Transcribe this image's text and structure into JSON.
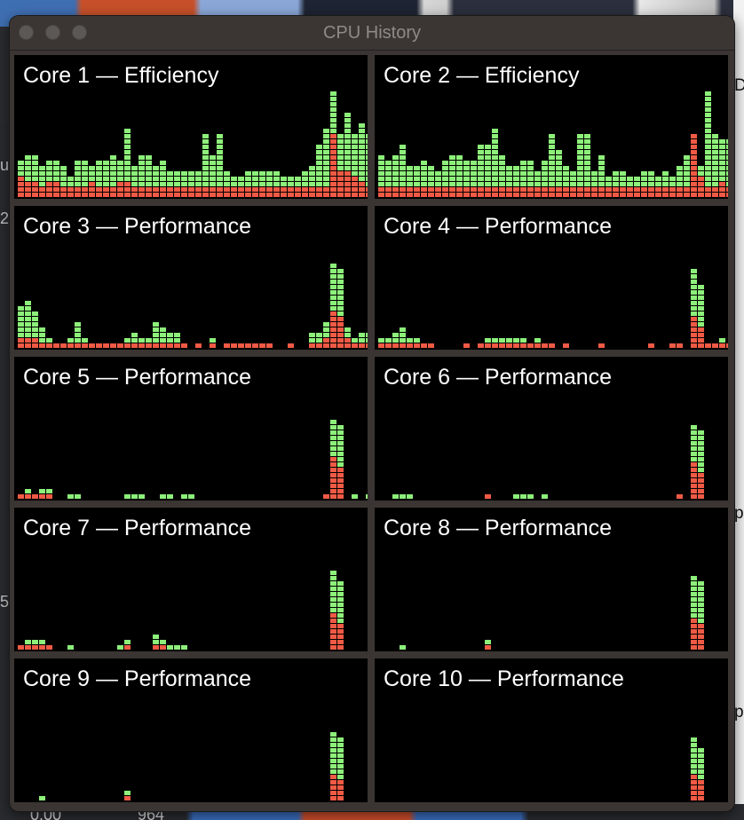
{
  "window": {
    "title": "CPU History"
  },
  "background_fragments": {
    "right_edge": [
      "D",
      "p",
      "p"
    ],
    "left_edge": [
      "u",
      "2",
      "5"
    ],
    "bottom": [
      "0.00",
      "964"
    ]
  },
  "colors": {
    "user": "#8df07a",
    "system": "#f05a45",
    "panel_bg": "#000000",
    "window_bg": "#3a3532"
  },
  "cores": [
    {
      "label": "Core 1 — Efficiency",
      "total": [
        7,
        8,
        8,
        6,
        7,
        7,
        6,
        4,
        7,
        7,
        6,
        7,
        7,
        8,
        7,
        13,
        6,
        8,
        8,
        6,
        7,
        5,
        5,
        5,
        5,
        5,
        12,
        8,
        12,
        5,
        4,
        4,
        5,
        5,
        5,
        5,
        5,
        4,
        4,
        4,
        5,
        6,
        10,
        13,
        20,
        12,
        16,
        12,
        14,
        12
      ],
      "system": [
        4,
        3,
        3,
        2,
        3,
        3,
        2,
        2,
        2,
        2,
        3,
        2,
        2,
        2,
        3,
        3,
        2,
        2,
        2,
        2,
        2,
        2,
        2,
        2,
        2,
        2,
        2,
        2,
        2,
        2,
        2,
        2,
        2,
        2,
        2,
        2,
        2,
        2,
        2,
        2,
        2,
        2,
        2,
        2,
        12,
        5,
        5,
        4,
        3,
        2
      ]
    },
    {
      "label": "Core 2 — Efficiency",
      "total": [
        8,
        7,
        8,
        10,
        6,
        6,
        7,
        6,
        5,
        7,
        8,
        8,
        7,
        7,
        10,
        10,
        13,
        8,
        6,
        6,
        7,
        7,
        5,
        7,
        12,
        9,
        6,
        5,
        12,
        12,
        5,
        8,
        4,
        5,
        5,
        4,
        4,
        5,
        5,
        4,
        5,
        4,
        6,
        8,
        12,
        6,
        20,
        12,
        11,
        11
      ],
      "system": [
        2,
        2,
        2,
        2,
        2,
        2,
        2,
        2,
        2,
        2,
        2,
        2,
        2,
        2,
        2,
        2,
        2,
        2,
        2,
        2,
        2,
        2,
        2,
        2,
        2,
        2,
        2,
        2,
        2,
        2,
        2,
        2,
        2,
        2,
        2,
        2,
        2,
        2,
        2,
        2,
        2,
        2,
        2,
        2,
        14,
        4,
        2,
        2,
        3,
        2
      ]
    },
    {
      "label": "Core 3 — Performance",
      "total": [
        8,
        9,
        7,
        4,
        2,
        1,
        1,
        2,
        5,
        2,
        1,
        1,
        1,
        1,
        1,
        2,
        3,
        2,
        2,
        5,
        4,
        3,
        3,
        1,
        0,
        1,
        0,
        2,
        0,
        1,
        1,
        1,
        1,
        1,
        1,
        1,
        0,
        0,
        1,
        0,
        0,
        3,
        3,
        5,
        16,
        15,
        4,
        2,
        3,
        3
      ],
      "system": [
        2,
        2,
        2,
        1,
        1,
        1,
        1,
        1,
        1,
        1,
        1,
        1,
        1,
        1,
        1,
        1,
        1,
        1,
        1,
        1,
        1,
        1,
        1,
        1,
        0,
        1,
        0,
        1,
        0,
        1,
        1,
        1,
        1,
        1,
        1,
        1,
        0,
        0,
        1,
        0,
        0,
        1,
        1,
        2,
        7,
        6,
        2,
        1,
        1,
        1
      ]
    },
    {
      "label": "Core 4 — Performance",
      "total": [
        2,
        2,
        3,
        4,
        2,
        2,
        1,
        1,
        0,
        0,
        0,
        0,
        1,
        0,
        1,
        2,
        2,
        2,
        2,
        2,
        2,
        1,
        2,
        1,
        1,
        0,
        1,
        0,
        0,
        0,
        0,
        1,
        0,
        0,
        0,
        0,
        0,
        0,
        1,
        0,
        0,
        1,
        1,
        0,
        15,
        12,
        1,
        1,
        2,
        1
      ],
      "system": [
        1,
        1,
        1,
        1,
        1,
        1,
        1,
        1,
        0,
        0,
        0,
        0,
        1,
        0,
        1,
        1,
        1,
        1,
        1,
        1,
        1,
        1,
        1,
        1,
        1,
        0,
        1,
        0,
        0,
        0,
        0,
        1,
        0,
        0,
        0,
        0,
        0,
        0,
        1,
        0,
        0,
        1,
        1,
        0,
        6,
        4,
        1,
        1,
        1,
        1
      ]
    },
    {
      "label": "Core 5 — Performance",
      "total": [
        1,
        2,
        1,
        2,
        2,
        0,
        0,
        1,
        1,
        0,
        0,
        0,
        0,
        0,
        0,
        1,
        1,
        1,
        0,
        0,
        1,
        1,
        0,
        1,
        1,
        0,
        0,
        0,
        0,
        0,
        0,
        0,
        0,
        0,
        0,
        0,
        0,
        0,
        0,
        0,
        0,
        0,
        0,
        1,
        15,
        14,
        0,
        1,
        0,
        1
      ],
      "system": [
        1,
        1,
        1,
        1,
        1,
        0,
        0,
        0,
        0,
        0,
        0,
        0,
        0,
        0,
        0,
        0,
        0,
        0,
        0,
        0,
        0,
        0,
        0,
        0,
        0,
        0,
        0,
        0,
        0,
        0,
        0,
        0,
        0,
        0,
        0,
        0,
        0,
        0,
        0,
        0,
        0,
        0,
        0,
        1,
        8,
        6,
        0,
        0,
        0,
        0
      ]
    },
    {
      "label": "Core 6 — Performance",
      "total": [
        0,
        0,
        1,
        1,
        1,
        0,
        0,
        0,
        0,
        0,
        0,
        0,
        0,
        0,
        0,
        1,
        0,
        0,
        0,
        1,
        1,
        1,
        0,
        1,
        0,
        0,
        0,
        0,
        0,
        0,
        0,
        0,
        0,
        0,
        0,
        0,
        0,
        0,
        0,
        0,
        0,
        0,
        1,
        0,
        14,
        13,
        0,
        0,
        0,
        0
      ],
      "system": [
        0,
        0,
        0,
        0,
        0,
        0,
        0,
        0,
        0,
        0,
        0,
        0,
        0,
        0,
        0,
        1,
        0,
        0,
        0,
        0,
        0,
        0,
        0,
        0,
        0,
        0,
        0,
        0,
        0,
        0,
        0,
        0,
        0,
        0,
        0,
        0,
        0,
        0,
        0,
        0,
        0,
        0,
        1,
        0,
        7,
        5,
        0,
        0,
        0,
        0
      ]
    },
    {
      "label": "Core 7 — Performance",
      "total": [
        1,
        2,
        2,
        2,
        1,
        0,
        0,
        1,
        0,
        0,
        0,
        0,
        0,
        0,
        1,
        2,
        0,
        0,
        0,
        3,
        2,
        1,
        1,
        1,
        0,
        0,
        0,
        0,
        0,
        0,
        0,
        0,
        0,
        0,
        0,
        0,
        0,
        0,
        0,
        0,
        0,
        0,
        0,
        0,
        15,
        13,
        0,
        0,
        0,
        0
      ],
      "system": [
        1,
        1,
        1,
        1,
        1,
        0,
        0,
        0,
        0,
        0,
        0,
        0,
        0,
        0,
        0,
        1,
        0,
        0,
        0,
        1,
        1,
        0,
        0,
        0,
        0,
        0,
        0,
        0,
        0,
        0,
        0,
        0,
        0,
        0,
        0,
        0,
        0,
        0,
        0,
        0,
        0,
        0,
        0,
        0,
        7,
        5,
        0,
        0,
        0,
        0
      ]
    },
    {
      "label": "Core 8 — Performance",
      "total": [
        0,
        0,
        0,
        1,
        0,
        0,
        0,
        0,
        0,
        0,
        0,
        0,
        0,
        0,
        0,
        2,
        0,
        0,
        0,
        0,
        0,
        0,
        0,
        0,
        0,
        0,
        0,
        0,
        0,
        0,
        0,
        0,
        0,
        0,
        0,
        0,
        0,
        0,
        0,
        0,
        0,
        0,
        0,
        0,
        14,
        13,
        0,
        0,
        0,
        0
      ],
      "system": [
        0,
        0,
        0,
        0,
        0,
        0,
        0,
        0,
        0,
        0,
        0,
        0,
        0,
        0,
        0,
        1,
        0,
        0,
        0,
        0,
        0,
        0,
        0,
        0,
        0,
        0,
        0,
        0,
        0,
        0,
        0,
        0,
        0,
        0,
        0,
        0,
        0,
        0,
        0,
        0,
        0,
        0,
        0,
        0,
        6,
        5,
        0,
        0,
        0,
        0
      ]
    },
    {
      "label": "Core 9 — Performance",
      "total": [
        0,
        0,
        0,
        1,
        0,
        0,
        0,
        0,
        0,
        0,
        0,
        0,
        0,
        0,
        0,
        2,
        0,
        0,
        0,
        0,
        0,
        0,
        0,
        0,
        0,
        0,
        0,
        0,
        0,
        0,
        0,
        0,
        0,
        0,
        0,
        0,
        0,
        0,
        0,
        0,
        0,
        0,
        0,
        0,
        13,
        12,
        0,
        0,
        0,
        0
      ],
      "system": [
        0,
        0,
        0,
        0,
        0,
        0,
        0,
        0,
        0,
        0,
        0,
        0,
        0,
        0,
        0,
        1,
        0,
        0,
        0,
        0,
        0,
        0,
        0,
        0,
        0,
        0,
        0,
        0,
        0,
        0,
        0,
        0,
        0,
        0,
        0,
        0,
        0,
        0,
        0,
        0,
        0,
        0,
        0,
        0,
        5,
        4,
        0,
        0,
        0,
        0
      ]
    },
    {
      "label": "Core 10 — Performance",
      "total": [
        0,
        0,
        0,
        0,
        0,
        0,
        0,
        0,
        0,
        0,
        0,
        0,
        0,
        0,
        0,
        0,
        0,
        0,
        0,
        0,
        0,
        0,
        0,
        0,
        0,
        0,
        0,
        0,
        0,
        0,
        0,
        0,
        0,
        0,
        0,
        0,
        0,
        0,
        0,
        0,
        0,
        0,
        0,
        0,
        12,
        10,
        0,
        0,
        0,
        0
      ],
      "system": [
        0,
        0,
        0,
        0,
        0,
        0,
        0,
        0,
        0,
        0,
        0,
        0,
        0,
        0,
        0,
        0,
        0,
        0,
        0,
        0,
        0,
        0,
        0,
        0,
        0,
        0,
        0,
        0,
        0,
        0,
        0,
        0,
        0,
        0,
        0,
        0,
        0,
        0,
        0,
        0,
        0,
        0,
        0,
        0,
        5,
        4,
        0,
        0,
        0,
        0
      ]
    }
  ]
}
